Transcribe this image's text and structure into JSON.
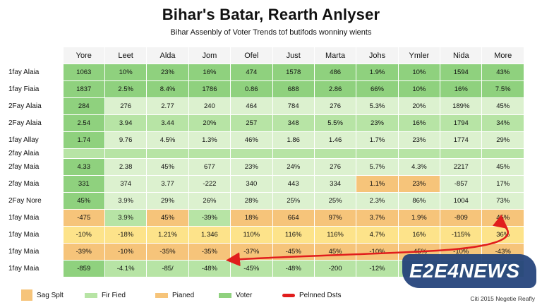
{
  "title": "Bihar's Batar, Rearth Anlyser",
  "subtitle": "Bihar Assenbly of Voter Trends tof butifods wonniny wients",
  "colors": {
    "dark_green": "#8fd17e",
    "green": "#b7e4a5",
    "light_green": "#dcf1cf",
    "orange": "#f6c47a",
    "yellow": "#fde38a",
    "arrow_red": "#e11d1d",
    "watermark_blue": "#1f3f78"
  },
  "chart_data": {
    "type": "table",
    "columns": [
      "Yore",
      "Leet",
      "Alda",
      "Jom",
      "Ofel",
      "Just",
      "Marta",
      "Johs",
      "Ymler",
      "Nida",
      "More"
    ],
    "rows": [
      {
        "label": "1fay Alaia",
        "values": [
          "1063",
          "10%",
          "23%",
          "16%",
          "474",
          "1578",
          "486",
          "1.9%",
          "10%",
          "1594",
          "43%"
        ],
        "color": "dark_green"
      },
      {
        "label": "1fay Fiaia",
        "values": [
          "1837",
          "2.5%",
          "8.4%",
          "1786",
          "0.86",
          "688",
          "2.86",
          "66%",
          "10%",
          "16%",
          "7.5%"
        ],
        "color": "dark_green"
      },
      {
        "label": "2Fay Alaia",
        "values": [
          "284",
          "276",
          "2.77",
          "240",
          "464",
          "784",
          "276",
          "5.3%",
          "20%",
          "189%",
          "45%"
        ],
        "color": "light_green"
      },
      {
        "label": "2Fay Alaia",
        "values": [
          "2.54",
          "3.94",
          "3.44",
          "20%",
          "257",
          "348",
          "5.5%",
          "23%",
          "16%",
          "1794",
          "34%"
        ],
        "color": "green"
      },
      {
        "label": "1fay Allay",
        "values": [
          "1.74",
          "9.76",
          "4.5%",
          "1.3%",
          "46%",
          "1.86",
          "1.46",
          "1.7%",
          "23%",
          "1774",
          "29%"
        ],
        "color": "light_green"
      },
      {
        "label": "2fay Alaia",
        "values": [
          "",
          "",
          "",
          "",
          "",
          "",
          "",
          "",
          "",
          "",
          ""
        ],
        "color": "green",
        "thin": true
      },
      {
        "label": "2fay Maia",
        "values": [
          "4.33",
          "2.38",
          "45%",
          "677",
          "23%",
          "24%",
          "276",
          "5.7%",
          "4.3%",
          "2217",
          "45%"
        ],
        "color": "light_green"
      },
      {
        "label": "2fay Maia",
        "values": [
          "331",
          "374",
          "3.77",
          "-222",
          "340",
          "443",
          "334",
          "1.1%",
          "23%",
          "-857",
          "17%"
        ],
        "color": "light_green",
        "orange_cells": [
          7,
          8
        ]
      },
      {
        "label": "2Fay Nore",
        "values": [
          "45%",
          "3.9%",
          "29%",
          "26%",
          "28%",
          "25%",
          "25%",
          "2.3%",
          "86%",
          "1004",
          "73%"
        ],
        "color": "light_green"
      },
      {
        "label": "1fay Maia",
        "values": [
          "-475",
          "3.9%",
          "45%",
          "-39%",
          "18%",
          "664",
          "97%",
          "3.7%",
          "1.9%",
          "-809",
          "45%"
        ],
        "color": "orange",
        "green_cells": [
          1,
          3
        ]
      },
      {
        "label": "1fay Maia",
        "values": [
          "-10%",
          "-18%",
          "1.21%",
          "1.346",
          "110%",
          "116%",
          "116%",
          "4.7%",
          "16%",
          "-115%",
          "36%"
        ],
        "color": "yellow"
      },
      {
        "label": "1fay Maia",
        "values": [
          "-39%",
          "-10%",
          "-35%",
          "-35%",
          "-37%",
          "-45%",
          "45%",
          "-10%",
          "-45%",
          "-10%",
          "-43%"
        ],
        "color": "orange"
      },
      {
        "label": "1fay Maia",
        "values": [
          "-859",
          "-4.1%",
          "-85/",
          "-48%",
          "-45%",
          "-48%",
          "-200",
          "-12%",
          "-45%",
          "-10%",
          "-19%"
        ],
        "color": "green"
      }
    ]
  },
  "legend": [
    {
      "label": "Sag Splt",
      "color": "orange"
    },
    {
      "label": "Fir Fied",
      "color": "green"
    },
    {
      "label": "Pianed",
      "color": "orange"
    },
    {
      "label": "Voter",
      "color": "dark_green"
    },
    {
      "label": "Pelnned Dsts",
      "color": "arrow_red"
    }
  ],
  "source": "Citi 2015 Negetie Reafly",
  "watermark": "E2E4NEWS"
}
